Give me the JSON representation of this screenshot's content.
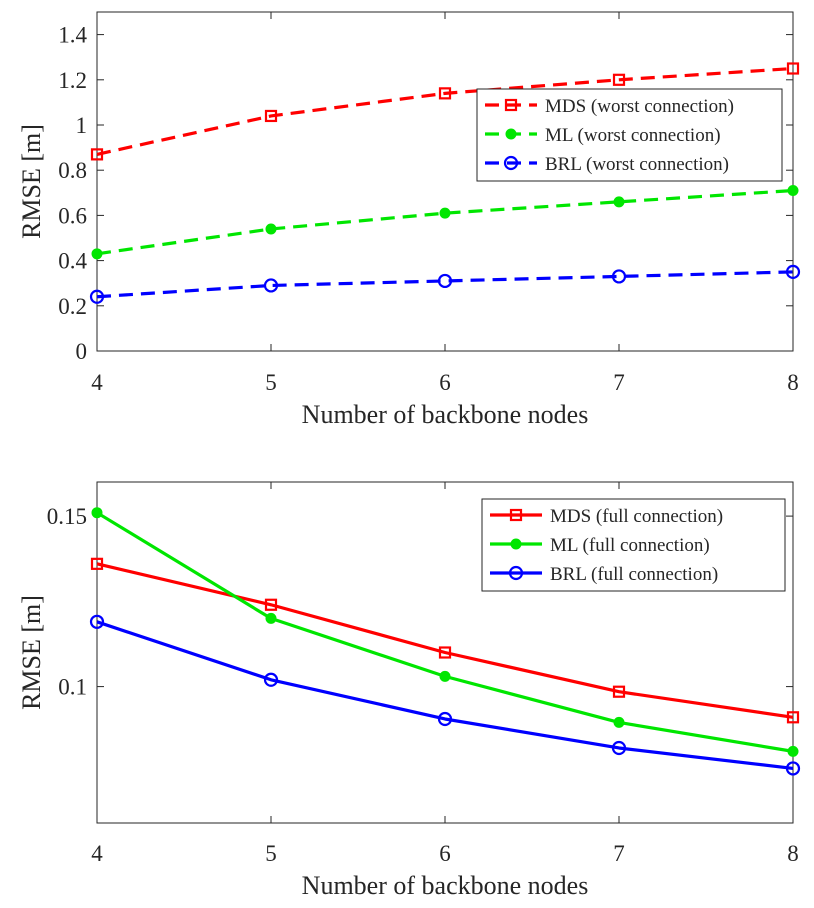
{
  "chart_data": [
    {
      "type": "line",
      "xlabel": "Number of backbone nodes",
      "ylabel": "RMSE [m]",
      "x": [
        4,
        5,
        6,
        7,
        8
      ],
      "xlim": [
        4,
        8
      ],
      "ylim": [
        0,
        1.5
      ],
      "xticks": [
        "4",
        "5",
        "6",
        "7",
        "8"
      ],
      "yticks": [
        "0",
        "0.2",
        "0.4",
        "0.6",
        "0.8",
        "1",
        "1.2",
        "1.4"
      ],
      "ytick_values": [
        0,
        0.2,
        0.4,
        0.6,
        0.8,
        1.0,
        1.2,
        1.4
      ],
      "legend_position": "right",
      "series": [
        {
          "name": "MDS (worst connection)",
          "values": [
            0.87,
            1.04,
            1.14,
            1.2,
            1.25
          ],
          "color": "#ff0000",
          "marker": "square",
          "dashed": true
        },
        {
          "name": "ML (worst connection)",
          "values": [
            0.43,
            0.54,
            0.61,
            0.66,
            0.71
          ],
          "color": "#00e600",
          "marker": "dot",
          "dashed": true
        },
        {
          "name": "BRL (worst connection)",
          "values": [
            0.24,
            0.29,
            0.31,
            0.33,
            0.35
          ],
          "color": "#0000ff",
          "marker": "circle",
          "dashed": true
        }
      ]
    },
    {
      "type": "line",
      "xlabel": "Number of backbone nodes",
      "ylabel": "RMSE [m]",
      "x": [
        4,
        5,
        6,
        7,
        8
      ],
      "xlim": [
        4,
        8
      ],
      "ylim": [
        0.06,
        0.16
      ],
      "xticks": [
        "4",
        "5",
        "6",
        "7",
        "8"
      ],
      "yticks": [
        "0.1",
        "0.15"
      ],
      "ytick_values": [
        0.1,
        0.15
      ],
      "legend_position": "top-right",
      "series": [
        {
          "name": "MDS (full connection)",
          "values": [
            0.136,
            0.124,
            0.11,
            0.0985,
            0.091
          ],
          "color": "#ff0000",
          "marker": "square",
          "dashed": false
        },
        {
          "name": "ML (full connection)",
          "values": [
            0.151,
            0.12,
            0.103,
            0.0895,
            0.081
          ],
          "color": "#00e600",
          "marker": "dot",
          "dashed": false
        },
        {
          "name": "BRL (full connection)",
          "values": [
            0.119,
            0.102,
            0.0905,
            0.082,
            0.076
          ],
          "color": "#0000ff",
          "marker": "circle",
          "dashed": false
        }
      ]
    }
  ]
}
